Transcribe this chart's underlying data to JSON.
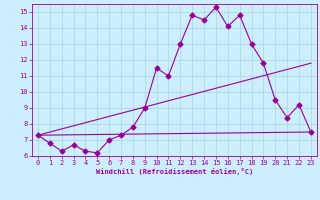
{
  "xlabel": "Windchill (Refroidissement éolien,°C)",
  "background_color": "#cceeff",
  "grid_color": "#aadddd",
  "line_color": "#990099",
  "xlim": [
    -0.5,
    23.5
  ],
  "ylim": [
    6,
    15.5
  ],
  "xticks": [
    0,
    1,
    2,
    3,
    4,
    5,
    6,
    7,
    8,
    9,
    10,
    11,
    12,
    13,
    14,
    15,
    16,
    17,
    18,
    19,
    20,
    21,
    22,
    23
  ],
  "yticks": [
    6,
    7,
    8,
    9,
    10,
    11,
    12,
    13,
    14,
    15
  ],
  "line1_x": [
    0,
    1,
    2,
    3,
    4,
    5,
    6,
    7,
    8,
    9,
    10,
    11,
    12,
    13,
    14,
    15,
    16,
    17,
    18,
    19,
    20,
    21,
    22,
    23
  ],
  "line1_y": [
    7.3,
    6.8,
    6.3,
    6.7,
    6.3,
    6.2,
    7.0,
    7.3,
    7.8,
    9.0,
    11.5,
    11.0,
    13.0,
    14.8,
    14.5,
    15.3,
    14.1,
    14.8,
    13.0,
    11.8,
    9.5,
    8.4,
    9.2,
    7.5
  ],
  "line2_x": [
    0,
    23
  ],
  "line2_y": [
    7.3,
    11.8
  ],
  "line3_x": [
    0,
    23
  ],
  "line3_y": [
    7.3,
    7.5
  ],
  "tick_fontsize": 5,
  "xlabel_fontsize": 5,
  "marker_size": 2.5,
  "linewidth": 0.8
}
